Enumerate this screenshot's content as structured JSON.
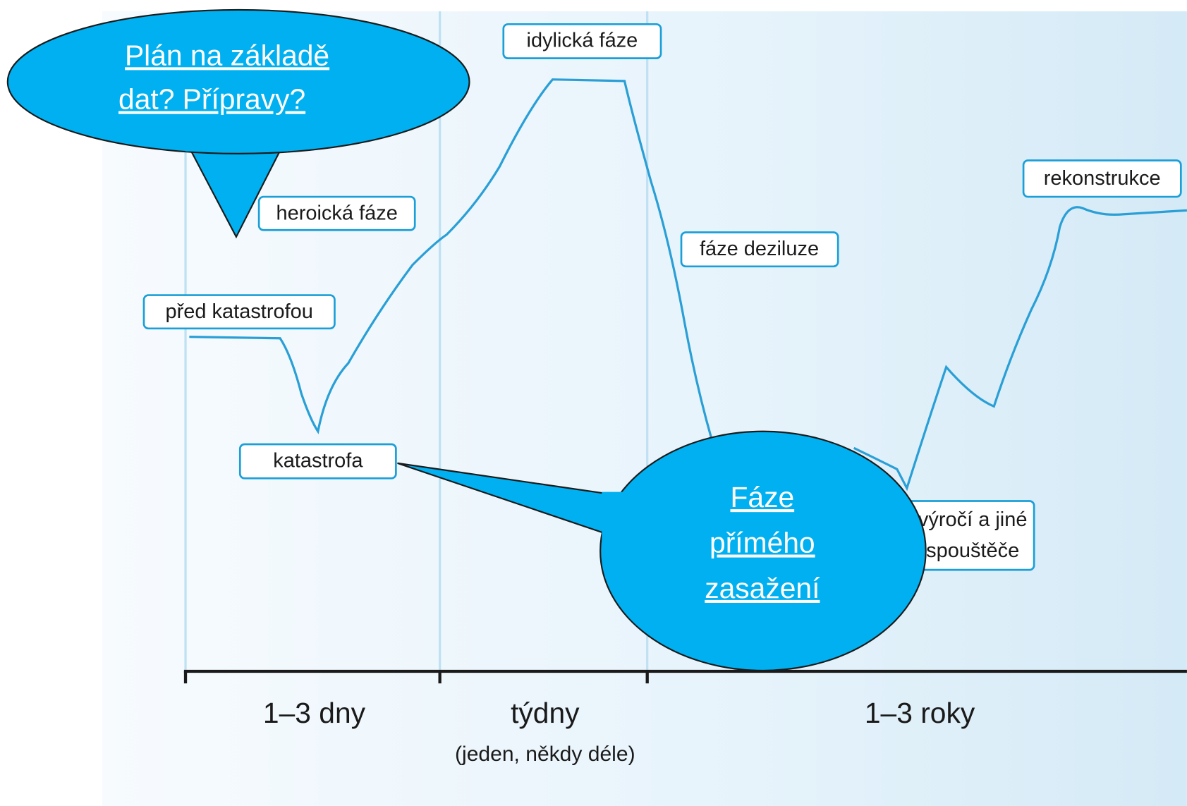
{
  "phases": {
    "before": "před katastrofou",
    "disaster": "katastrofa",
    "heroic": "heroická fáze",
    "honeymoon": "idylická fáze",
    "disillusion": "fáze deziluze",
    "reconstruction": "rekonstrukce",
    "triggers": [
      "výročí a jiné",
      "spouštěče"
    ]
  },
  "timeline": {
    "days": "1–3 dny",
    "weeks": "týdny",
    "weeks_note": "(jeden, někdy déle)",
    "years": "1–3 roky"
  },
  "callouts": [
    {
      "lines": [
        " Plán na základě",
        "dat? Přípravy?"
      ]
    },
    {
      "lines": [
        "Fáze",
        "přímého",
        "zasažení"
      ]
    }
  ]
}
